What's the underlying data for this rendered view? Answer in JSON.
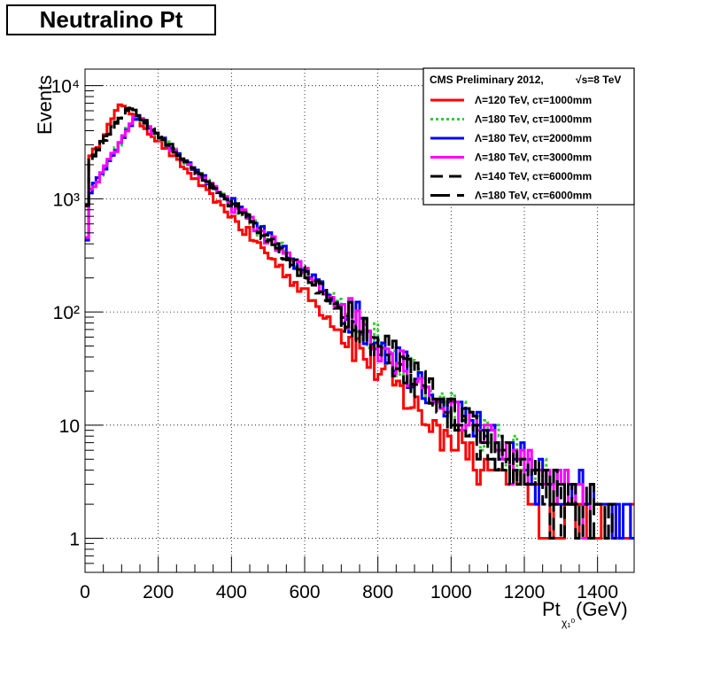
{
  "title": "Neutralino Pt",
  "legend": {
    "header_left": "CMS Preliminary 2012,",
    "header_right": "√s=8 TeV",
    "placement": "top-right"
  },
  "chart_data": {
    "type": "line",
    "subtype": "step-histogram",
    "title": "Neutralino Pt",
    "xlabel": "Pt",
    "xlabel_sub": "χ₁⁰",
    "xlabel_unit": "(GeV)",
    "ylabel": "Events",
    "xlim": [
      0,
      1500
    ],
    "ylim": [
      0.5,
      14000
    ],
    "yscale": "log",
    "grid": true,
    "bin_width": 10,
    "x_ticks": [
      0,
      200,
      400,
      600,
      800,
      1000,
      1200,
      1400
    ],
    "x_tick_labels": [
      "0",
      "200",
      "400",
      "600",
      "800",
      "1000",
      "1200",
      "1400"
    ],
    "y_ticks": [
      1,
      10,
      100,
      1000,
      10000
    ],
    "y_tick_labels": [
      "1",
      "10",
      "10²",
      "10³",
      "10⁴"
    ],
    "series": [
      {
        "name": "Λ=120 TeV, cτ=1000mm",
        "color": "#ff0000",
        "dash": "solid",
        "peak_x": 100,
        "peak_y": 7000,
        "slope_decades_per_100gev": 0.335,
        "x_start": 0,
        "x_end": 1500,
        "y_first_bin": 900,
        "tail_min": 1,
        "tail_max": 3
      },
      {
        "name": "Λ=180 TeV, cτ=1000mm",
        "color": "#33cc33",
        "dash": "dotted",
        "peak_x": 140,
        "peak_y": 5500,
        "slope_decades_per_100gev": 0.3,
        "x_start": 0,
        "x_end": 1330,
        "y_first_bin": 450,
        "tail_min": 1,
        "tail_max": 5
      },
      {
        "name": "Λ=180 TeV, cτ=2000mm",
        "color": "#0000ff",
        "dash": "solid",
        "peak_x": 140,
        "peak_y": 5500,
        "slope_decades_per_100gev": 0.3,
        "x_start": 0,
        "x_end": 1500,
        "y_first_bin": 450,
        "tail_min": 1,
        "tail_max": 2
      },
      {
        "name": "Λ=180 TeV, cτ=3000mm",
        "color": "#ff00ff",
        "dash": "solid",
        "peak_x": 140,
        "peak_y": 5400,
        "slope_decades_per_100gev": 0.3,
        "x_start": 0,
        "x_end": 1390,
        "y_first_bin": 450,
        "tail_min": 1,
        "tail_max": 2
      },
      {
        "name": "Λ=140 TeV, cτ=6000mm",
        "color": "#000000",
        "dash": "dashed",
        "peak_x": 120,
        "peak_y": 6500,
        "slope_decades_per_100gev": 0.31,
        "x_start": 0,
        "x_end": 1450,
        "y_first_bin": 900,
        "tail_min": 1,
        "tail_max": 3
      },
      {
        "name": "Λ=180 TeV, cτ=6000mm",
        "color": "#000000",
        "dash": "longdash",
        "peak_x": 120,
        "peak_y": 6600,
        "slope_decades_per_100gev": 0.31,
        "x_start": 0,
        "x_end": 1450,
        "y_first_bin": 900,
        "tail_min": 1,
        "tail_max": 3
      }
    ]
  }
}
